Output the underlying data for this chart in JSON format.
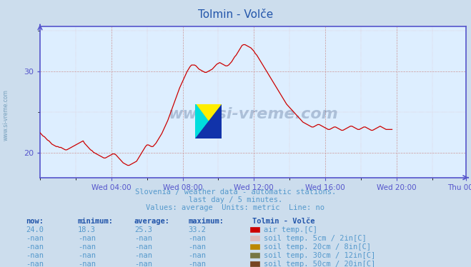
{
  "title": "Tolmin - Volče",
  "bg_color": "#ccdded",
  "plot_bg_color": "#ddeeff",
  "line_color": "#cc0000",
  "axis_color": "#5555cc",
  "text_color": "#5599cc",
  "title_color": "#2255aa",
  "watermark_text": "www.si-vreme.com",
  "subtitle_lines": [
    "Slovenia / weather data - automatic stations.",
    "last day / 5 minutes.",
    "Values: average  Units: metric  Line: no"
  ],
  "xlabel_ticks": [
    "Wed 04:00",
    "Wed 08:00",
    "Wed 12:00",
    "Wed 16:00",
    "Wed 20:00",
    "Thu 00:00"
  ],
  "yticks": [
    20,
    30
  ],
  "ylim": [
    17.0,
    35.5
  ],
  "xlim": [
    0,
    287
  ],
  "now_val": "24.0",
  "min_val": "18.3",
  "avg_val": "25.3",
  "max_val": "33.2",
  "legend_entries": [
    {
      "label": "air temp.[C]",
      "color": "#cc0000"
    },
    {
      "label": "soil temp. 5cm / 2in[C]",
      "color": "#ddbbbb"
    },
    {
      "label": "soil temp. 20cm / 8in[C]",
      "color": "#bb8800"
    },
    {
      "label": "soil temp. 30cm / 12in[C]",
      "color": "#777744"
    },
    {
      "label": "soil temp. 50cm / 20in[C]",
      "color": "#774422"
    }
  ],
  "data": [
    22.5,
    22.3,
    22.1,
    22.0,
    21.8,
    21.6,
    21.5,
    21.3,
    21.1,
    21.0,
    20.9,
    20.8,
    20.8,
    20.7,
    20.7,
    20.6,
    20.5,
    20.4,
    20.4,
    20.5,
    20.6,
    20.7,
    20.8,
    20.9,
    21.0,
    21.1,
    21.2,
    21.3,
    21.4,
    21.5,
    21.2,
    21.0,
    20.8,
    20.6,
    20.4,
    20.3,
    20.1,
    20.0,
    19.9,
    19.8,
    19.7,
    19.6,
    19.5,
    19.4,
    19.4,
    19.5,
    19.6,
    19.7,
    19.8,
    19.9,
    19.9,
    19.8,
    19.6,
    19.4,
    19.2,
    19.0,
    18.8,
    18.7,
    18.6,
    18.5,
    18.5,
    18.6,
    18.7,
    18.8,
    18.9,
    19.0,
    19.3,
    19.6,
    19.9,
    20.2,
    20.5,
    20.8,
    21.0,
    21.0,
    20.9,
    20.8,
    20.8,
    21.0,
    21.2,
    21.5,
    21.8,
    22.1,
    22.4,
    22.8,
    23.2,
    23.6,
    24.0,
    24.5,
    25.0,
    25.5,
    26.0,
    26.5,
    27.0,
    27.5,
    28.0,
    28.4,
    28.8,
    29.2,
    29.6,
    30.0,
    30.3,
    30.6,
    30.8,
    30.8,
    30.8,
    30.7,
    30.5,
    30.3,
    30.2,
    30.1,
    30.0,
    29.9,
    29.9,
    30.0,
    30.1,
    30.2,
    30.3,
    30.5,
    30.7,
    30.9,
    31.0,
    31.1,
    31.0,
    30.9,
    30.8,
    30.7,
    30.7,
    30.8,
    31.0,
    31.2,
    31.5,
    31.8,
    32.0,
    32.3,
    32.6,
    32.9,
    33.2,
    33.3,
    33.3,
    33.2,
    33.1,
    33.0,
    32.9,
    32.7,
    32.5,
    32.2,
    32.0,
    31.7,
    31.4,
    31.1,
    30.8,
    30.5,
    30.2,
    29.9,
    29.6,
    29.3,
    29.0,
    28.7,
    28.4,
    28.1,
    27.8,
    27.5,
    27.2,
    26.9,
    26.6,
    26.3,
    26.0,
    25.8,
    25.6,
    25.4,
    25.2,
    25.0,
    24.8,
    24.6,
    24.4,
    24.2,
    24.0,
    23.8,
    23.7,
    23.6,
    23.5,
    23.4,
    23.3,
    23.2,
    23.2,
    23.3,
    23.4,
    23.5,
    23.5,
    23.4,
    23.3,
    23.2,
    23.1,
    23.0,
    22.9,
    22.9,
    23.0,
    23.1,
    23.2,
    23.2,
    23.1,
    23.0,
    22.9,
    22.8,
    22.8,
    22.9,
    23.0,
    23.1,
    23.2,
    23.3,
    23.3,
    23.2,
    23.1,
    23.0,
    22.9,
    22.9,
    23.0,
    23.1,
    23.2,
    23.2,
    23.1,
    23.0,
    22.9,
    22.8,
    22.8,
    22.9,
    23.0,
    23.1,
    23.2,
    23.3,
    23.2,
    23.1,
    23.0,
    22.9,
    22.9,
    22.9,
    22.9,
    22.9
  ]
}
